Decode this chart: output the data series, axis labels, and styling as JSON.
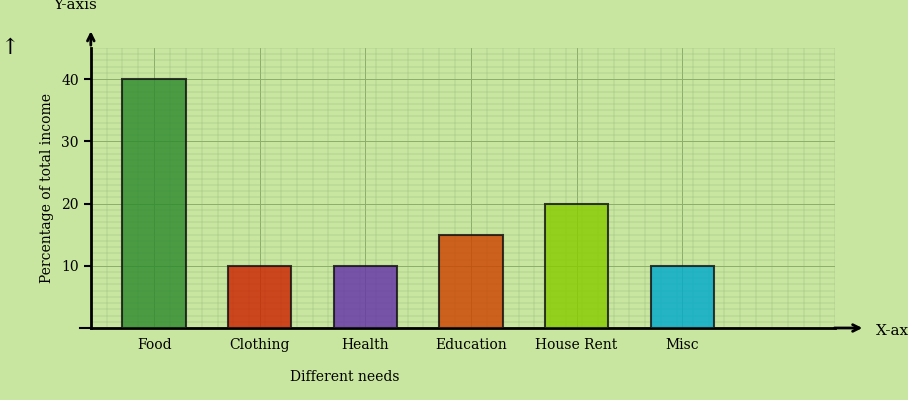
{
  "categories": [
    "Food",
    "Clothing",
    "Health",
    "Education",
    "House Rent",
    "Misc"
  ],
  "values": [
    40,
    10,
    10,
    15,
    20,
    10
  ],
  "bar_colors": [
    "#2e8b2e",
    "#cc2200",
    "#6633aa",
    "#cc4400",
    "#88cc00",
    "#00aacc"
  ],
  "bar_edge_colors": [
    "#111111",
    "#111111",
    "#111111",
    "#111111",
    "#111111",
    "#111111"
  ],
  "background_color": "#c8e6a0",
  "grid_minor_color": "#9dbf80",
  "grid_major_color": "#8aaf6a",
  "ylabel": "Percentage of total income",
  "xlabel": "Different needs",
  "ylim": [
    0,
    45
  ],
  "yticks": [
    10,
    20,
    30,
    40
  ],
  "title_yaxis": "Y-axis",
  "title_xaxis": "X-axis",
  "bar_width": 0.6,
  "bar_alpha": 0.82,
  "figsize": [
    9.08,
    4.0
  ],
  "dpi": 100
}
